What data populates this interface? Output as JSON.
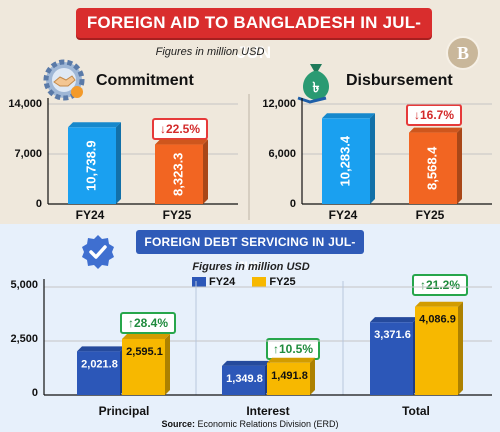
{
  "header": {
    "title": "FOREIGN AID TO BANGLADESH IN JUL-JUN",
    "note": "Figures in million USD",
    "logo_letter": "B"
  },
  "commitment": {
    "title": "Commitment",
    "icon": "gear-handshake-icon",
    "yticks": [
      "14,000",
      "7,000",
      "0"
    ],
    "change": "22.5%",
    "change_arrow": "↓"
  },
  "disbursement": {
    "title": "Disbursement",
    "icon": "money-bag-icon",
    "yticks": [
      "12,000",
      "6,000",
      "0"
    ],
    "change": "16.7%",
    "change_arrow": "↓"
  },
  "debt": {
    "title": "FOREIGN DEBT SERVICING IN JUL-JUN",
    "note": "Figures in million USD",
    "icon": "checkmark-badge-icon",
    "yticks": [
      "5,000",
      "2,500",
      "0"
    ],
    "legend": [
      "FY24",
      "FY25"
    ],
    "changes": [
      {
        "arrow": "↑",
        "value": "28.4%"
      },
      {
        "arrow": "↑",
        "value": "10.5%"
      },
      {
        "arrow": "↑",
        "value": "21.2%"
      }
    ]
  },
  "source": {
    "label": "Source:",
    "text": "Economic Relations Division (ERD)"
  },
  "colors": {
    "banner_red": "#d92d2d",
    "fy24_cyan": "#1aa0f0",
    "fy25_orange": "#f26522",
    "fy24_blue": "#2c57b8",
    "fy25_yellow": "#f7b800",
    "up_green": "#1f8b3d",
    "down_red": "#d32a2a"
  },
  "chart_data": [
    {
      "type": "bar",
      "title": "Commitment",
      "categories": [
        "FY24",
        "FY25"
      ],
      "values": [
        10738.9,
        8323.3
      ],
      "value_labels": [
        "10,738.9",
        "8,323.3"
      ],
      "ylim": [
        0,
        14000
      ],
      "unit": "million USD"
    },
    {
      "type": "bar",
      "title": "Disbursement",
      "categories": [
        "FY24",
        "FY25"
      ],
      "values": [
        10283.4,
        8568.4
      ],
      "value_labels": [
        "10,283.4",
        "8,568.4"
      ],
      "ylim": [
        0,
        12000
      ],
      "unit": "million USD"
    },
    {
      "type": "bar",
      "title": "FOREIGN DEBT SERVICING IN JUL-JUN",
      "categories": [
        "Principal",
        "Interest",
        "Total"
      ],
      "series": [
        {
          "name": "FY24",
          "values": [
            2021.8,
            1349.8,
            3371.6
          ],
          "value_labels": [
            "2,021.8",
            "1,349.8",
            "3,371.6"
          ]
        },
        {
          "name": "FY25",
          "values": [
            2595.1,
            1491.8,
            4086.9
          ],
          "value_labels": [
            "2,595.1",
            "1,491.8",
            "4,086.9"
          ]
        }
      ],
      "ylim": [
        0,
        5000
      ],
      "unit": "million USD"
    }
  ]
}
